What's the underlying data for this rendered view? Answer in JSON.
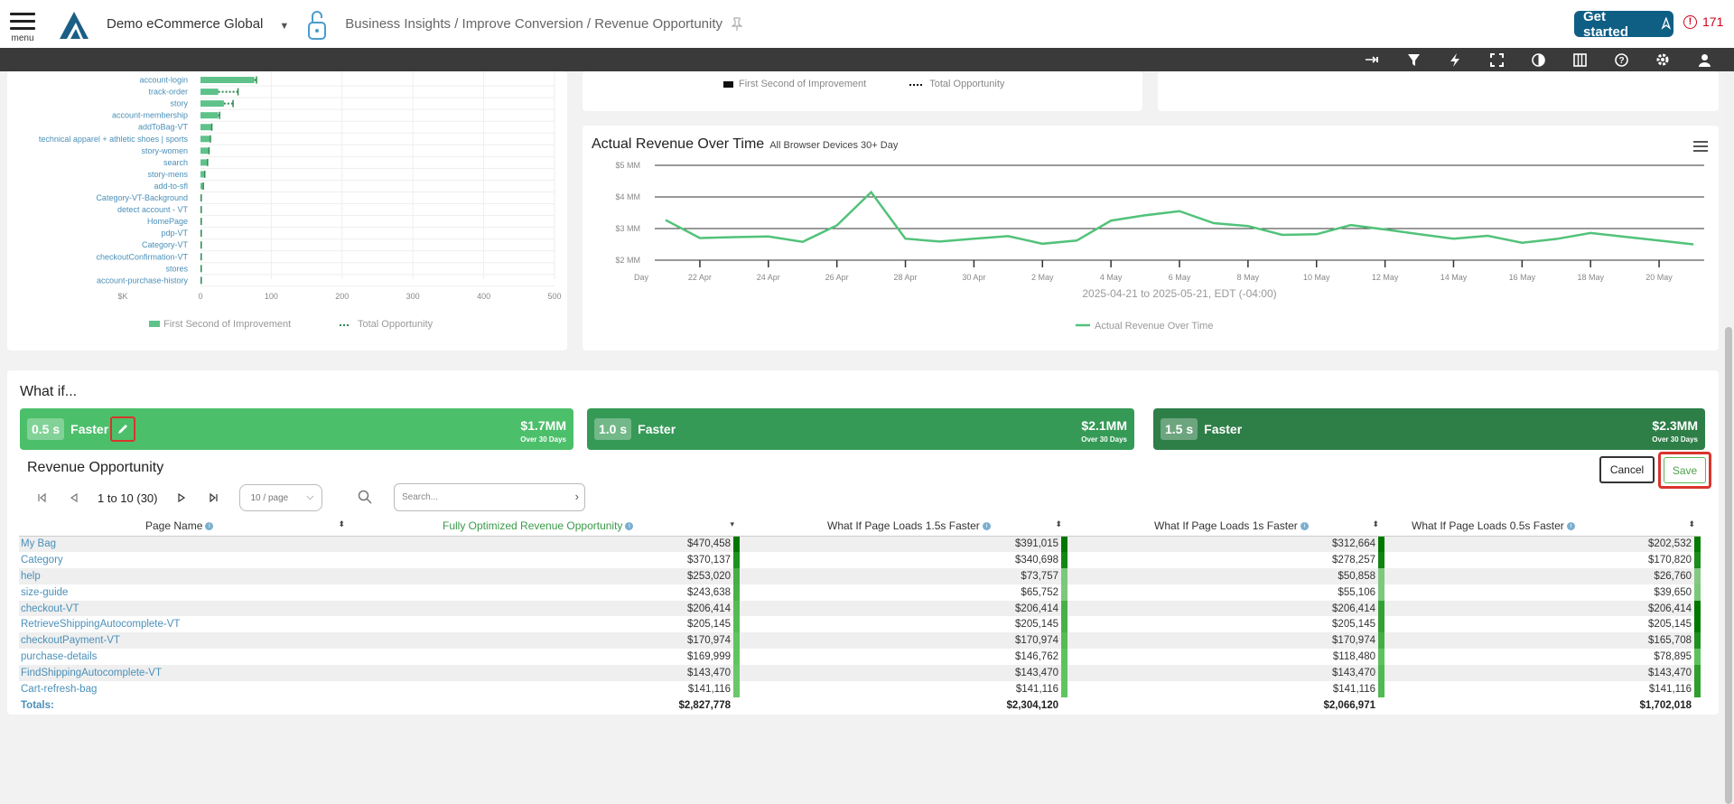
{
  "header": {
    "menu_label": "menu",
    "org_name": "Demo eCommerce Global",
    "breadcrumb": "Business Insights / Improve Conversion / Revenue Opportunity",
    "get_started": "Get started",
    "alert_count": "171"
  },
  "colors": {
    "brand_blue": "#0f5f85",
    "green_main": "#4cbf6a",
    "green_dark": "#2e8b4e",
    "alert_red": "#d0021b"
  },
  "toolbar_icons": [
    "arrow-right-icon",
    "filter-icon",
    "bolt-icon",
    "fullscreen-icon",
    "contrast-icon",
    "columns-icon",
    "help-icon",
    "settings-icon",
    "user-icon"
  ],
  "bar_chart": {
    "chart_data": {
      "type": "bar",
      "categories": [
        "account-login",
        "track-order",
        "story",
        "account-membership",
        "addToBag-VT",
        "technical apparel + athletic shoes | sports",
        "story-women",
        "search",
        "story-mens",
        "add-to-sfl",
        "Category-VT-Background",
        "detect account - VT",
        "HomePage",
        "pdp-VT",
        "Category-VT",
        "checkoutConfirmation-VT",
        "stores",
        "account-purchase-history"
      ],
      "series": [
        {
          "name": "First Second of Improvement",
          "values": [
            76,
            25,
            33,
            25,
            16,
            13,
            11,
            9,
            5,
            3,
            1,
            1,
            1,
            1,
            1,
            1,
            1,
            1
          ]
        },
        {
          "name": "Total Opportunity",
          "values": [
            79,
            53,
            46,
            27,
            16,
            14,
            12,
            10,
            6,
            4,
            1,
            1,
            1,
            1,
            1,
            1,
            1,
            1
          ]
        }
      ],
      "x_ticks": [
        "$K",
        "0",
        "100",
        "200",
        "300",
        "400",
        "500"
      ],
      "xlim": [
        0,
        500
      ]
    }
  },
  "legend_top_right": {
    "first": "First Second of Improvement",
    "total": "Total Opportunity"
  },
  "line_chart": {
    "title": "Actual Revenue Over Time",
    "subtitle": "All Browser Devices 30+ Day",
    "date_range": "2025-04-21 to 2025-05-21, EDT (-04:00)",
    "legend": "Actual Revenue Over Time",
    "chart_data": {
      "type": "line",
      "y_ticks": [
        "$5 MM",
        "$4 MM",
        "$3 MM",
        "$2 MM"
      ],
      "ylim": [
        2,
        5
      ],
      "x_ticks": [
        "Day",
        "22 Apr",
        "24 Apr",
        "26 Apr",
        "28 Apr",
        "30 Apr",
        "2 May",
        "4 May",
        "6 May",
        "8 May",
        "10 May",
        "12 May",
        "14 May",
        "16 May",
        "18 May",
        "20 May"
      ],
      "x": [
        "2025-04-21",
        "2025-04-22",
        "2025-04-23",
        "2025-04-24",
        "2025-04-25",
        "2025-04-26",
        "2025-04-27",
        "2025-04-28",
        "2025-04-29",
        "2025-04-30",
        "2025-05-01",
        "2025-05-02",
        "2025-05-03",
        "2025-05-04",
        "2025-05-05",
        "2025-05-06",
        "2025-05-07",
        "2025-05-08",
        "2025-05-09",
        "2025-05-10",
        "2025-05-11",
        "2025-05-12",
        "2025-05-13",
        "2025-05-14",
        "2025-05-15",
        "2025-05-16",
        "2025-05-17",
        "2025-05-18",
        "2025-05-19",
        "2025-05-20",
        "2025-05-21"
      ],
      "series": [
        {
          "name": "Actual Revenue Over Time",
          "values": [
            3.27,
            2.7,
            2.73,
            2.75,
            2.58,
            3.1,
            4.15,
            2.68,
            2.59,
            2.68,
            2.76,
            2.52,
            2.62,
            3.25,
            3.42,
            3.55,
            3.17,
            3.08,
            2.8,
            2.82,
            3.11,
            2.97,
            2.82,
            2.68,
            2.77,
            2.55,
            2.67,
            2.86,
            2.74,
            2.62,
            2.5
          ]
        }
      ]
    }
  },
  "whatif": {
    "title": "What if...",
    "scenarios": [
      {
        "seconds": "0.5 s",
        "label": "Faster",
        "amount": "$1.7MM",
        "period": "Over 30 Days"
      },
      {
        "seconds": "1.0 s",
        "label": "Faster",
        "amount": "$2.1MM",
        "period": "Over 30 Days"
      },
      {
        "seconds": "1.5 s",
        "label": "Faster",
        "amount": "$2.3MM",
        "period": "Over 30 Days"
      }
    ]
  },
  "revenue": {
    "title": "Revenue Opportunity",
    "cancel": "Cancel",
    "save": "Save",
    "page_info": "1 to 10 (30)",
    "page_size": "10 / page",
    "search_placeholder": "Search...",
    "columns": [
      "Page Name",
      "Fully Optimized Revenue Opportunity",
      "What If Page Loads 1.5s Faster",
      "What If Page Loads 1s Faster",
      "What If Page Loads 0.5s Faster"
    ],
    "rows": [
      {
        "name": "My Bag",
        "c1": "$470,458",
        "c2": "$391,015",
        "c3": "$312,664",
        "c4": "$202,532"
      },
      {
        "name": "Category",
        "c1": "$370,137",
        "c2": "$340,698",
        "c3": "$278,257",
        "c4": "$170,820"
      },
      {
        "name": "help",
        "c1": "$253,020",
        "c2": "$73,757",
        "c3": "$50,858",
        "c4": "$26,760"
      },
      {
        "name": "size-guide",
        "c1": "$243,638",
        "c2": "$65,752",
        "c3": "$55,106",
        "c4": "$39,650"
      },
      {
        "name": "checkout-VT",
        "c1": "$206,414",
        "c2": "$206,414",
        "c3": "$206,414",
        "c4": "$206,414"
      },
      {
        "name": "RetrieveShippingAutocomplete-VT",
        "c1": "$205,145",
        "c2": "$205,145",
        "c3": "$205,145",
        "c4": "$205,145"
      },
      {
        "name": "checkoutPayment-VT",
        "c1": "$170,974",
        "c2": "$170,974",
        "c3": "$170,974",
        "c4": "$165,708"
      },
      {
        "name": "purchase-details",
        "c1": "$169,999",
        "c2": "$146,762",
        "c3": "$118,480",
        "c4": "$78,895"
      },
      {
        "name": "FindShippingAutocomplete-VT",
        "c1": "$143,470",
        "c2": "$143,470",
        "c3": "$143,470",
        "c4": "$143,470"
      },
      {
        "name": "Cart-refresh-bag",
        "c1": "$141,116",
        "c2": "$141,116",
        "c3": "$141,116",
        "c4": "$141,116"
      }
    ],
    "totals": {
      "name": "Totals:",
      "c1": "$2,827,778",
      "c2": "$2,304,120",
      "c3": "$2,066,971",
      "c4": "$1,702,018"
    }
  }
}
